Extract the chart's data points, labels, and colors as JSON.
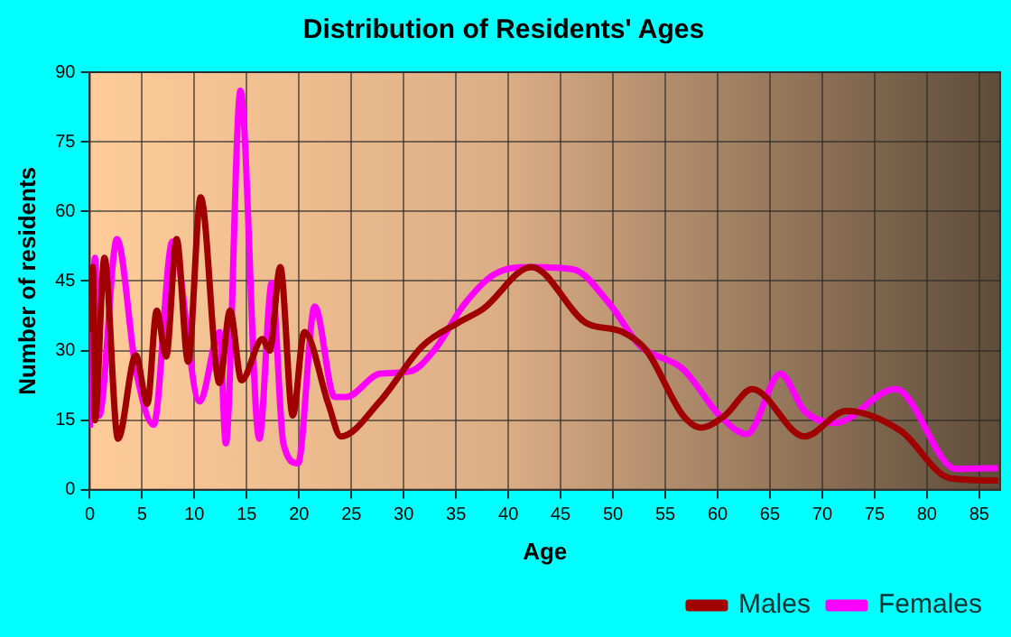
{
  "chart_data": {
    "type": "line",
    "title": "Distribution of Residents' Ages",
    "xlabel": "Age",
    "ylabel": "Number of residents",
    "xlim": [
      0,
      87
    ],
    "xticks": [
      0,
      5,
      10,
      15,
      20,
      25,
      30,
      35,
      40,
      45,
      50,
      55,
      60,
      65,
      70,
      75,
      80,
      85
    ],
    "ylim": [
      0,
      90
    ],
    "yticks": [
      0,
      15,
      30,
      45,
      60,
      75,
      90
    ],
    "grid": true,
    "legend": "bottom right",
    "marker": "none",
    "line_style": "solid",
    "series": [
      {
        "name": "Males",
        "color": "#a00000",
        "x": [
          0,
          0.3,
          0.5,
          1.4,
          2.7,
          4.4,
          5.5,
          6.4,
          7.3,
          8.3,
          9.4,
          10.6,
          12.4,
          13.4,
          14.5,
          16.5,
          17.2,
          18.2,
          19.4,
          20.5,
          22.8,
          24,
          27.7,
          31.8,
          35.2,
          37.6,
          42.2,
          47.4,
          50.9,
          53.2,
          56.7,
          58.4,
          60.7,
          63.3,
          68.3,
          72.3,
          77.5,
          82.2,
          86.8
        ],
        "values": [
          34,
          48,
          15,
          50,
          11,
          29,
          18.5,
          38.6,
          28.7,
          54,
          27.6,
          63,
          23,
          38.6,
          23.6,
          32.5,
          30,
          48,
          16,
          34,
          18.5,
          11.5,
          19,
          31,
          36,
          39,
          48,
          36,
          34,
          30,
          16,
          13.4,
          16,
          21.7,
          11.5,
          17,
          12.7,
          2.5,
          2
        ]
      },
      {
        "name": "Females",
        "color": "#ff00ff",
        "x": [
          0,
          0.5,
          0.9,
          2.6,
          4.4,
          6.1,
          7.9,
          10.5,
          12.4,
          13,
          14.4,
          16.2,
          17.4,
          18.5,
          19.9,
          21.5,
          23.4,
          24.5,
          27.7,
          30.6,
          32.9,
          35.8,
          38.7,
          42.2,
          46.2,
          49.7,
          52.6,
          56.7,
          60.2,
          62.8,
          66,
          68.3,
          71.2,
          77,
          82.8,
          86.8
        ],
        "values": [
          13.4,
          50,
          16,
          54,
          26,
          14,
          53.5,
          19,
          34,
          10,
          86,
          11,
          44.6,
          10,
          5.7,
          39.5,
          20,
          20,
          25,
          25.5,
          30,
          40,
          46.5,
          48,
          47.5,
          40,
          31,
          26,
          16,
          12,
          25,
          17,
          14.4,
          21.7,
          4.5,
          4.7
        ]
      }
    ]
  }
}
